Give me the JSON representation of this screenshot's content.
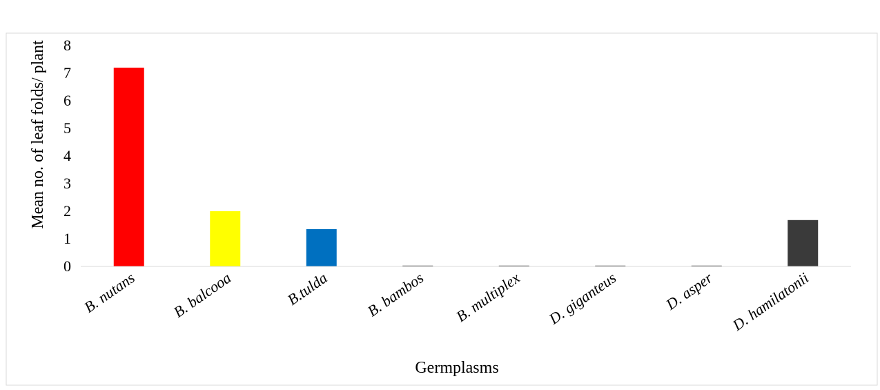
{
  "chart_data": {
    "type": "bar",
    "categories": [
      "B. nutans",
      "B. balcooa",
      "B.tulda",
      "B. bambos",
      "B. multiplex",
      "D. giganteus",
      "D. asper",
      "D. hamilatonii"
    ],
    "values": [
      7.2,
      2.0,
      1.35,
      0,
      0,
      0,
      0,
      1.68
    ],
    "colors": [
      "#ff0000",
      "#ffff00",
      "#0070c0",
      "#3a3a3a",
      "#3a3a3a",
      "#3a3a3a",
      "#3a3a3a",
      "#3a3a3a"
    ],
    "xlabel": "Germplasms",
    "ylabel": "Mean no. of leaf folds/ plant",
    "ylim": [
      0,
      8
    ],
    "yticks": [
      "0",
      "1",
      "2",
      "3",
      "4",
      "5",
      "6",
      "7",
      "8"
    ],
    "grid": false,
    "legend": "none"
  }
}
